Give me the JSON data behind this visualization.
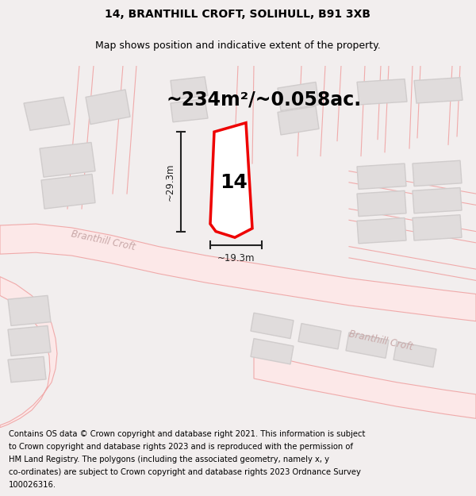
{
  "title": "14, BRANTHILL CROFT, SOLIHULL, B91 3XB",
  "subtitle": "Map shows position and indicative extent of the property.",
  "area_label": "~234m²/~0.058ac.",
  "number_label": "14",
  "dim_height": "~29.3m",
  "dim_width": "~19.3m",
  "street_label1": "Branthill Croft",
  "street_label2": "Branthill Croft",
  "footer_lines": [
    "Contains OS data © Crown copyright and database right 2021. This information is subject",
    "to Crown copyright and database rights 2023 and is reproduced with the permission of",
    "HM Land Registry. The polygons (including the associated geometry, namely x, y",
    "co-ordinates) are subject to Crown copyright and database rights 2023 Ordnance Survey",
    "100026316."
  ],
  "bg_color": "#f2eeee",
  "map_bg": "#ffffff",
  "plot_color": "#ee0000",
  "road_line_color": "#f0aaaa",
  "road_fill_color": "#fce8e8",
  "building_fill": "#e0dcdc",
  "building_edge": "#d0cccc",
  "dim_color": "#222222",
  "street_color": "#c8a8a8",
  "title_fontsize": 10,
  "subtitle_fontsize": 9,
  "area_fontsize": 17,
  "number_fontsize": 18,
  "footer_fontsize": 7.2,
  "street_fontsize": 8.5
}
